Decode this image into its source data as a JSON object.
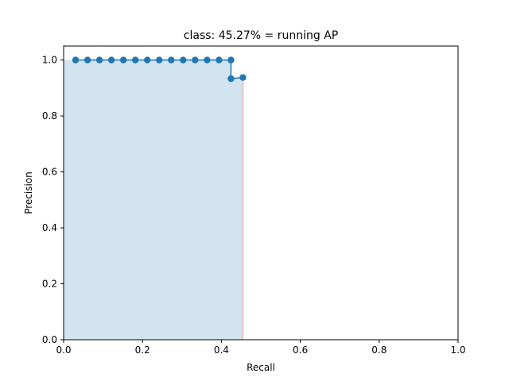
{
  "chart_data": {
    "type": "area",
    "title": "class: 45.27% = running AP",
    "xlabel": "Recall",
    "ylabel": "Precision",
    "xlim": [
      0.0,
      1.0
    ],
    "ylim": [
      0.0,
      1.05
    ],
    "xticks": [
      "0.0",
      "0.2",
      "0.4",
      "0.6",
      "0.8",
      "1.0"
    ],
    "yticks": [
      "0.0",
      "0.2",
      "0.4",
      "0.6",
      "0.8",
      "1.0"
    ],
    "grid": false,
    "series": [
      {
        "type": "line",
        "color": "#1f77b4",
        "marker": "circle",
        "x": [
          0.0303,
          0.0606,
          0.0909,
          0.1212,
          0.1515,
          0.1818,
          0.2121,
          0.2424,
          0.2727,
          0.303,
          0.3333,
          0.3636,
          0.3939,
          0.4242,
          0.4242,
          0.4545
        ],
        "y": [
          1.0,
          1.0,
          1.0,
          1.0,
          1.0,
          1.0,
          1.0,
          1.0,
          1.0,
          1.0,
          1.0,
          1.0,
          1.0,
          1.0,
          0.9333,
          0.9375
        ]
      }
    ],
    "fill": {
      "color": "#1f77b4",
      "edge_color": "#f4b9b9",
      "x": [
        0.0,
        0.0,
        0.4242,
        0.4242,
        0.4545,
        0.4545
      ],
      "y": [
        0.0,
        1.0,
        1.0,
        0.9375,
        0.9375,
        0.0
      ]
    }
  }
}
